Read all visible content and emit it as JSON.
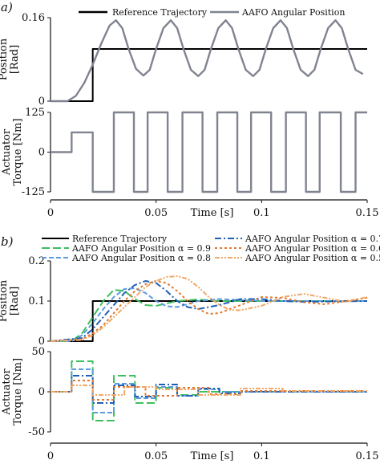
{
  "panels": {
    "a": "a)",
    "b": "b)"
  },
  "chart_data": [
    {
      "id": "a-position",
      "type": "line",
      "ylabel": "Position [Rad]",
      "xlim": [
        0,
        0.15
      ],
      "ylim": [
        0,
        0.16
      ],
      "yticks": [
        0,
        0.16
      ],
      "ytick_labels": [
        "0",
        "0.16"
      ],
      "legend": [
        "Reference Trajectory",
        "AAFO Angular Position"
      ],
      "legend_position": "top",
      "series": [
        {
          "name": "Reference Trajectory",
          "color": "#000000",
          "x": [
            0,
            0.02,
            0.02,
            0.15
          ],
          "y": [
            0,
            0,
            0.1,
            0.1
          ]
        },
        {
          "name": "AAFO Angular Position",
          "color": "#808490",
          "x": [
            0.0,
            0.008,
            0.012,
            0.016,
            0.02,
            0.024,
            0.028,
            0.031,
            0.034,
            0.037,
            0.0405,
            0.044,
            0.047,
            0.05,
            0.0535,
            0.057,
            0.06,
            0.063,
            0.0665,
            0.07,
            0.073,
            0.076,
            0.0795,
            0.083,
            0.086,
            0.089,
            0.0925,
            0.096,
            0.099,
            0.102,
            0.1055,
            0.109,
            0.112,
            0.115,
            0.1185,
            0.122,
            0.125,
            0.128,
            0.1315,
            0.135,
            0.138,
            0.141,
            0.1445,
            0.148
          ],
          "y": [
            0.0,
            0.0,
            0.01,
            0.035,
            0.07,
            0.11,
            0.145,
            0.155,
            0.14,
            0.1,
            0.062,
            0.049,
            0.06,
            0.1,
            0.14,
            0.155,
            0.14,
            0.1,
            0.06,
            0.048,
            0.06,
            0.1,
            0.14,
            0.155,
            0.14,
            0.1,
            0.06,
            0.048,
            0.06,
            0.1,
            0.14,
            0.155,
            0.14,
            0.1,
            0.06,
            0.048,
            0.06,
            0.1,
            0.14,
            0.155,
            0.14,
            0.1,
            0.06,
            0.052
          ]
        }
      ]
    },
    {
      "id": "a-torque",
      "type": "line",
      "ylabel": "Actuator Torque [Nm]",
      "xlabel": "Time [s]",
      "xlim": [
        0,
        0.15
      ],
      "ylim": [
        -125,
        125
      ],
      "yticks": [
        -125,
        0,
        125
      ],
      "ytick_labels": [
        "-125",
        "0",
        "125"
      ],
      "xticks": [
        0,
        0.05,
        0.1,
        0.15
      ],
      "xtick_labels": [
        "0",
        "0.05",
        "0.1",
        "0.15"
      ],
      "series": [
        {
          "name": "AAFO Angular Position",
          "color": "#808490",
          "x": [
            0.0,
            0.01,
            0.01,
            0.02,
            0.02,
            0.03,
            0.03,
            0.0395,
            0.0395,
            0.046,
            0.046,
            0.0555,
            0.0555,
            0.0625,
            0.0625,
            0.072,
            0.072,
            0.079,
            0.079,
            0.0885,
            0.0885,
            0.095,
            0.095,
            0.1045,
            0.1045,
            0.1115,
            0.1115,
            0.121,
            0.121,
            0.1275,
            0.1275,
            0.1375,
            0.1375,
            0.1445,
            0.1445,
            0.15
          ],
          "y": [
            0,
            0,
            62,
            62,
            -125,
            -125,
            125,
            125,
            -125,
            -125,
            125,
            125,
            -125,
            -125,
            125,
            125,
            -125,
            -125,
            125,
            125,
            -125,
            -125,
            125,
            125,
            -125,
            -125,
            125,
            125,
            -125,
            -125,
            125,
            125,
            -125,
            -125,
            125,
            125
          ]
        }
      ]
    },
    {
      "id": "b-position",
      "type": "line",
      "ylabel": "Position [Rad]",
      "xlim": [
        0,
        0.15
      ],
      "ylim": [
        0,
        0.2
      ],
      "yticks": [
        0,
        0.1,
        0.2
      ],
      "ytick_labels": [
        "0",
        "0.1",
        "0.2"
      ],
      "legend": [
        "Reference Trajectory",
        "AAFO Angular Position α = 0.9",
        "AAFO Angular Position α = 0.8",
        "AAFO Angular Position α = 0.7",
        "AAFO Angular Position α = 0.6",
        "AAFO Angular Position α = 0.5"
      ],
      "legend_position": "top",
      "series": [
        {
          "name": "Reference Trajectory",
          "color": "#000000",
          "dash": "solid",
          "x": [
            0,
            0.02,
            0.02,
            0.15
          ],
          "y": [
            0,
            0,
            0.1,
            0.1
          ]
        },
        {
          "name": "AAFO Angular Position α = 0.9",
          "color": "#3dbf5e",
          "dash": "long",
          "x": [
            0,
            0.01,
            0.015,
            0.02,
            0.025,
            0.03,
            0.035,
            0.04,
            0.045,
            0.05,
            0.06,
            0.07,
            0.08,
            0.1,
            0.12,
            0.15
          ],
          "y": [
            0,
            0,
            0.02,
            0.06,
            0.1,
            0.128,
            0.125,
            0.105,
            0.09,
            0.088,
            0.1,
            0.104,
            0.1,
            0.1,
            0.1,
            0.1
          ]
        },
        {
          "name": "AAFO Angular Position α = 0.8",
          "color": "#5b9be0",
          "dash": "dash",
          "x": [
            0,
            0.01,
            0.015,
            0.02,
            0.025,
            0.03,
            0.035,
            0.04,
            0.045,
            0.05,
            0.055,
            0.06,
            0.07,
            0.08,
            0.1,
            0.12,
            0.15
          ],
          "y": [
            0,
            0,
            0.015,
            0.045,
            0.08,
            0.11,
            0.13,
            0.132,
            0.12,
            0.1,
            0.087,
            0.085,
            0.1,
            0.105,
            0.1,
            0.1,
            0.1
          ]
        },
        {
          "name": "AAFO Angular Position α = 0.7",
          "color": "#1f5fb5",
          "dash": "dashdot",
          "x": [
            0,
            0.015,
            0.02,
            0.025,
            0.03,
            0.035,
            0.04,
            0.045,
            0.05,
            0.055,
            0.06,
            0.065,
            0.07,
            0.08,
            0.09,
            0.1,
            0.11,
            0.12,
            0.15
          ],
          "y": [
            0,
            0.008,
            0.03,
            0.06,
            0.09,
            0.12,
            0.14,
            0.15,
            0.145,
            0.125,
            0.1,
            0.085,
            0.08,
            0.09,
            0.105,
            0.105,
            0.1,
            0.098,
            0.1
          ]
        },
        {
          "name": "AAFO Angular Position α = 0.6",
          "color": "#e07a30",
          "dash": "dot",
          "x": [
            0,
            0.015,
            0.02,
            0.025,
            0.03,
            0.035,
            0.04,
            0.045,
            0.05,
            0.055,
            0.06,
            0.065,
            0.07,
            0.075,
            0.08,
            0.09,
            0.1,
            0.11,
            0.12,
            0.13,
            0.14,
            0.15
          ],
          "y": [
            0,
            0.005,
            0.02,
            0.04,
            0.07,
            0.1,
            0.125,
            0.142,
            0.15,
            0.145,
            0.125,
            0.1,
            0.08,
            0.068,
            0.07,
            0.09,
            0.11,
            0.108,
            0.097,
            0.092,
            0.1,
            0.108
          ]
        },
        {
          "name": "AAFO Angular Position α = 0.5",
          "color": "#f0a868",
          "dash": "dashdotdot",
          "x": [
            0,
            0.015,
            0.02,
            0.025,
            0.03,
            0.035,
            0.04,
            0.045,
            0.05,
            0.055,
            0.06,
            0.065,
            0.07,
            0.075,
            0.08,
            0.085,
            0.09,
            0.1,
            0.11,
            0.12,
            0.13,
            0.14,
            0.15
          ],
          "y": [
            0,
            0.003,
            0.015,
            0.035,
            0.06,
            0.085,
            0.11,
            0.135,
            0.15,
            0.16,
            0.162,
            0.155,
            0.135,
            0.11,
            0.09,
            0.078,
            0.077,
            0.088,
            0.11,
            0.118,
            0.108,
            0.098,
            0.11
          ]
        }
      ]
    },
    {
      "id": "b-torque",
      "type": "line",
      "ylabel": "Actuator Torque [Nm]",
      "xlabel": "Time [s]",
      "xlim": [
        0,
        0.15
      ],
      "ylim": [
        -50,
        50
      ],
      "yticks": [
        -50,
        0,
        50
      ],
      "ytick_labels": [
        "-50",
        "0",
        "50"
      ],
      "xticks": [
        0,
        0.05,
        0.1,
        0.15
      ],
      "xtick_labels": [
        "0",
        "0.05",
        "0.1",
        "0.15"
      ],
      "series": [
        {
          "name": "AAFO Angular Position α = 0.9",
          "color": "#3dbf5e",
          "dash": "long",
          "x": [
            0,
            0.01,
            0.01,
            0.02,
            0.02,
            0.03,
            0.03,
            0.04,
            0.04,
            0.05,
            0.05,
            0.06,
            0.06,
            0.07,
            0.07,
            0.15
          ],
          "y": [
            0,
            0,
            38,
            38,
            -36,
            -36,
            20,
            20,
            -14,
            -14,
            5,
            5,
            -4,
            -4,
            0,
            0
          ]
        },
        {
          "name": "AAFO Angular Position α = 0.8",
          "color": "#5b9be0",
          "dash": "dash",
          "x": [
            0,
            0.01,
            0.01,
            0.02,
            0.02,
            0.03,
            0.03,
            0.04,
            0.04,
            0.05,
            0.05,
            0.06,
            0.06,
            0.07,
            0.07,
            0.08,
            0.08,
            0.15
          ],
          "y": [
            0,
            0,
            28,
            28,
            -26,
            -26,
            10,
            10,
            -8,
            -8,
            6,
            6,
            -5,
            -5,
            3,
            3,
            0,
            0
          ]
        },
        {
          "name": "AAFO Angular Position α = 0.7",
          "color": "#1f5fb5",
          "dash": "dashdot",
          "x": [
            0,
            0.01,
            0.01,
            0.02,
            0.02,
            0.03,
            0.03,
            0.04,
            0.04,
            0.05,
            0.05,
            0.06,
            0.06,
            0.07,
            0.07,
            0.08,
            0.08,
            0.09,
            0.09,
            0.15
          ],
          "y": [
            0,
            0,
            20,
            20,
            -14,
            -14,
            8,
            8,
            -6,
            -6,
            9,
            9,
            -5,
            -5,
            4,
            4,
            -2,
            -2,
            0,
            0
          ]
        },
        {
          "name": "AAFO Angular Position α = 0.6",
          "color": "#e07a30",
          "dash": "dot",
          "x": [
            0,
            0.01,
            0.01,
            0.02,
            0.02,
            0.03,
            0.03,
            0.045,
            0.045,
            0.06,
            0.06,
            0.075,
            0.075,
            0.09,
            0.09,
            0.15
          ],
          "y": [
            0,
            0,
            14,
            14,
            -10,
            -10,
            6,
            6,
            -5,
            -5,
            5,
            5,
            -3,
            -3,
            1,
            1
          ]
        },
        {
          "name": "AAFO Angular Position α = 0.5",
          "color": "#f0a868",
          "dash": "dashdotdot",
          "x": [
            0,
            0.01,
            0.01,
            0.02,
            0.02,
            0.035,
            0.035,
            0.05,
            0.05,
            0.07,
            0.07,
            0.09,
            0.09,
            0.11,
            0.11,
            0.15
          ],
          "y": [
            0,
            0,
            8,
            8,
            -4,
            -4,
            6,
            6,
            3,
            3,
            -4,
            -4,
            4,
            4,
            1,
            1
          ]
        }
      ]
    }
  ]
}
